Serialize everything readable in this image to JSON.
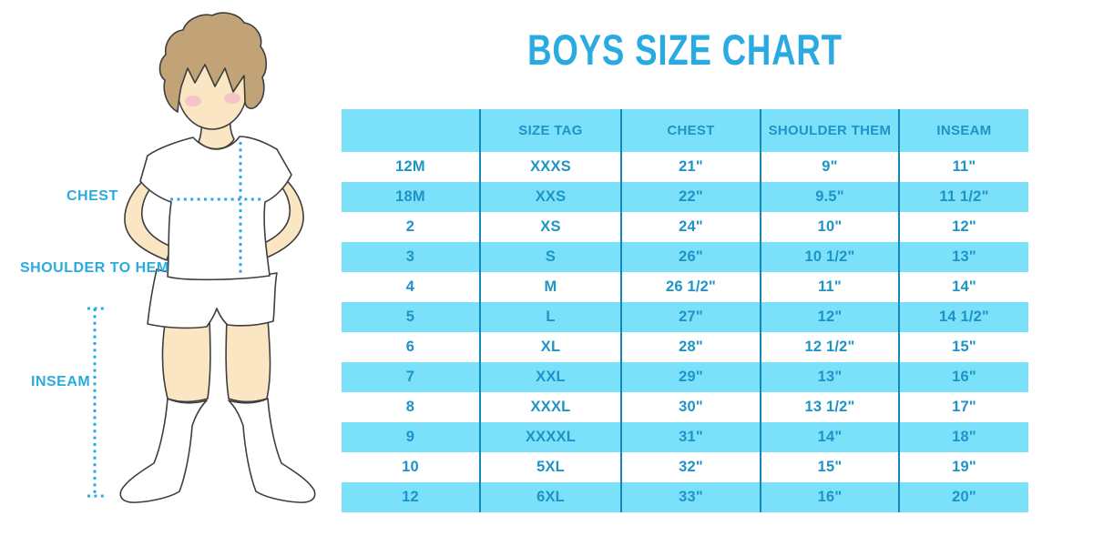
{
  "title": "BOYS SIZE CHART",
  "figure": {
    "labels": {
      "chest": "CHEST",
      "shoulder_to_hem": "SHOULDER TO HEM",
      "inseam": "INSEAM"
    }
  },
  "colors": {
    "accent": "#29ABE2",
    "band": "#7BE1FA",
    "divider": "#1287B8",
    "table-text": "#1E94C6",
    "outline": "#3E3E3E",
    "skin": "#FAE6C2",
    "hair": "#C2A378",
    "blush": "#F4B7C7",
    "garment": "#FFFFFF"
  },
  "chart_data": {
    "type": "table",
    "title": "BOYS SIZE CHART",
    "columns": [
      "",
      "SIZE TAG",
      "CHEST",
      "SHOULDER THEM",
      "INSEAM"
    ],
    "rows": [
      [
        "12M",
        "XXXS",
        "21\"",
        "9\"",
        "11\""
      ],
      [
        "18M",
        "XXS",
        "22\"",
        "9.5\"",
        "11 1/2\""
      ],
      [
        "2",
        "XS",
        "24\"",
        "10\"",
        "12\""
      ],
      [
        "3",
        "S",
        "26\"",
        "10 1/2\"",
        "13\""
      ],
      [
        "4",
        "M",
        "26 1/2\"",
        "11\"",
        "14\""
      ],
      [
        "5",
        "L",
        "27\"",
        "12\"",
        "14 1/2\""
      ],
      [
        "6",
        "XL",
        "28\"",
        "12 1/2\"",
        "15\""
      ],
      [
        "7",
        "XXL",
        "29\"",
        "13\"",
        "16\""
      ],
      [
        "8",
        "XXXL",
        "30\"",
        "13 1/2\"",
        "17\""
      ],
      [
        "9",
        "XXXXL",
        "31\"",
        "14\"",
        "18\""
      ],
      [
        "10",
        "5XL",
        "32\"",
        "15\"",
        "19\""
      ],
      [
        "12",
        "6XL",
        "33\"",
        "16\"",
        "20\""
      ]
    ]
  }
}
